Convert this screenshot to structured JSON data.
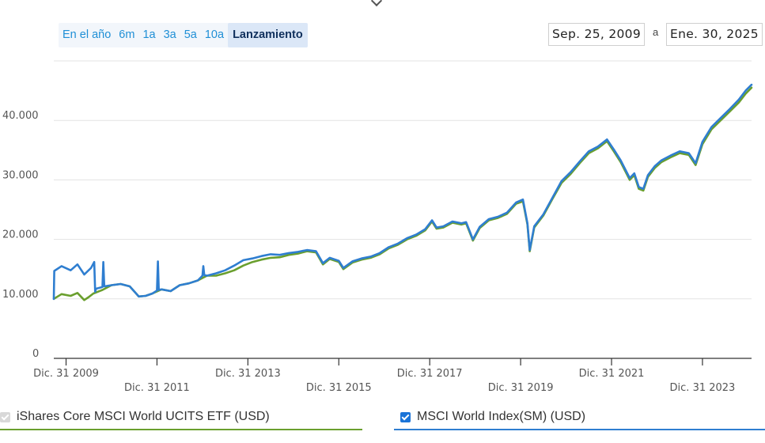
{
  "range_buttons": [
    {
      "label": "En el año",
      "active": false
    },
    {
      "label": "6m",
      "active": false
    },
    {
      "label": "1a",
      "active": false
    },
    {
      "label": "3a",
      "active": false
    },
    {
      "label": "5a",
      "active": false
    },
    {
      "label": "10a",
      "active": false
    },
    {
      "label": "Lanzamiento",
      "active": true
    }
  ],
  "date_range": {
    "from": "Sep. 25, 2009",
    "separator": "a",
    "to": "Ene. 30, 2025"
  },
  "legend": [
    {
      "label": "iShares Core MSCI World UCITS ETF (USD)",
      "checked": true,
      "disabled": true,
      "color": "#6a9f2e"
    },
    {
      "label": "MSCI World Index(SM) (USD)",
      "checked": true,
      "disabled": false,
      "color": "#2f7ed0"
    }
  ],
  "chart_data": {
    "type": "line",
    "title": "",
    "xlabel": "",
    "ylabel": "",
    "ylim": [
      0,
      50000
    ],
    "xlim": [
      2009.73,
      2025.08
    ],
    "yticks": [
      {
        "value": 0,
        "label": "0"
      },
      {
        "value": 10000,
        "label": "10.000"
      },
      {
        "value": 20000,
        "label": "20.000"
      },
      {
        "value": 30000,
        "label": "30.000"
      },
      {
        "value": 40000,
        "label": "40.000"
      }
    ],
    "xticks": [
      {
        "value": 2010.0,
        "label": "Dic. 31 2009"
      },
      {
        "value": 2012.0,
        "label": "Dic. 31 2011"
      },
      {
        "value": 2014.0,
        "label": "Dic. 31 2013"
      },
      {
        "value": 2016.0,
        "label": "Dic. 31 2015"
      },
      {
        "value": 2018.0,
        "label": "Dic. 31 2017"
      },
      {
        "value": 2020.0,
        "label": "Dic. 31 2019"
      },
      {
        "value": 2022.0,
        "label": "Dic. 31 2021"
      },
      {
        "value": 2024.0,
        "label": "Dic. 31 2023"
      }
    ],
    "grid": true,
    "legend_position": "bottom",
    "series": [
      {
        "name": "iShares Core MSCI World UCITS ETF (USD)",
        "color": "#6a9f2e",
        "x": [
          2009.73,
          2009.9,
          2010.1,
          2010.25,
          2010.4,
          2010.5,
          2010.6,
          2010.8,
          2011.0,
          2011.2,
          2011.4,
          2011.6,
          2011.75,
          2011.9,
          2012.1,
          2012.3,
          2012.5,
          2012.7,
          2012.9,
          2013.1,
          2013.3,
          2013.5,
          2013.7,
          2013.9,
          2014.1,
          2014.3,
          2014.5,
          2014.7,
          2014.9,
          2015.1,
          2015.3,
          2015.5,
          2015.65,
          2015.8,
          2016.0,
          2016.1,
          2016.3,
          2016.5,
          2016.7,
          2016.9,
          2017.1,
          2017.3,
          2017.5,
          2017.7,
          2017.9,
          2018.05,
          2018.15,
          2018.3,
          2018.5,
          2018.7,
          2018.8,
          2018.95,
          2019.1,
          2019.3,
          2019.5,
          2019.7,
          2019.9,
          2020.05,
          2020.15,
          2020.2,
          2020.3,
          2020.5,
          2020.7,
          2020.9,
          2021.1,
          2021.3,
          2021.5,
          2021.7,
          2021.9,
          2022.05,
          2022.2,
          2022.4,
          2022.5,
          2022.6,
          2022.7,
          2022.8,
          2022.95,
          2023.1,
          2023.3,
          2023.5,
          2023.7,
          2023.85,
          2024.0,
          2024.2,
          2024.4,
          2024.6,
          2024.8,
          2024.95,
          2025.08
        ],
        "y": [
          10000,
          10800,
          10500,
          11000,
          9800,
          10300,
          10900,
          11500,
          12300,
          12500,
          12100,
          10400,
          10500,
          10900,
          11600,
          11300,
          12300,
          12600,
          13100,
          13900,
          13900,
          14300,
          14800,
          15600,
          16200,
          16600,
          16900,
          17000,
          17400,
          17600,
          18000,
          17800,
          15800,
          16700,
          16200,
          15000,
          16100,
          16600,
          16900,
          17500,
          18500,
          19100,
          20000,
          20600,
          21500,
          23000,
          21800,
          22000,
          22800,
          22500,
          22700,
          19800,
          21900,
          23200,
          23600,
          24300,
          26000,
          26400,
          22500,
          18000,
          22000,
          24000,
          26800,
          29500,
          31000,
          32800,
          34500,
          35300,
          36500,
          34800,
          33000,
          30000,
          30800,
          28500,
          28200,
          30500,
          32000,
          33000,
          33800,
          34500,
          34200,
          32500,
          36000,
          38500,
          40000,
          41500,
          43000,
          44500,
          45500
        ]
      },
      {
        "name": "MSCI World Index(SM) (USD)",
        "color": "#2f7ed0",
        "x": [
          2009.73,
          2009.74,
          2009.9,
          2010.1,
          2010.25,
          2010.4,
          2010.55,
          2010.62,
          2010.64,
          2010.66,
          2010.8,
          2010.82,
          2010.84,
          2011.0,
          2011.2,
          2011.4,
          2011.6,
          2011.75,
          2011.9,
          2012.0,
          2012.02,
          2012.04,
          2012.1,
          2012.3,
          2012.5,
          2012.7,
          2012.9,
          2013.0,
          2013.02,
          2013.04,
          2013.1,
          2013.3,
          2013.5,
          2013.7,
          2013.9,
          2014.1,
          2014.3,
          2014.5,
          2014.7,
          2014.9,
          2015.1,
          2015.3,
          2015.5,
          2015.65,
          2015.8,
          2016.0,
          2016.1,
          2016.3,
          2016.5,
          2016.7,
          2016.9,
          2017.1,
          2017.3,
          2017.5,
          2017.7,
          2017.9,
          2018.05,
          2018.15,
          2018.3,
          2018.5,
          2018.7,
          2018.8,
          2018.95,
          2019.1,
          2019.3,
          2019.5,
          2019.7,
          2019.9,
          2020.05,
          2020.15,
          2020.2,
          2020.3,
          2020.5,
          2020.7,
          2020.9,
          2021.1,
          2021.3,
          2021.5,
          2021.7,
          2021.9,
          2022.05,
          2022.2,
          2022.4,
          2022.5,
          2022.6,
          2022.7,
          2022.8,
          2022.95,
          2023.1,
          2023.3,
          2023.5,
          2023.7,
          2023.85,
          2024.0,
          2024.2,
          2024.4,
          2024.6,
          2024.8,
          2024.95,
          2025.08
        ],
        "y": [
          10000,
          14700,
          15500,
          14800,
          15800,
          14100,
          15200,
          16200,
          11200,
          11700,
          12000,
          16200,
          12100,
          12300,
          12500,
          12100,
          10400,
          10500,
          10900,
          11400,
          16300,
          11500,
          11600,
          11300,
          12300,
          12600,
          13100,
          13900,
          15500,
          14000,
          13900,
          14300,
          14800,
          15600,
          16500,
          16800,
          17200,
          17500,
          17400,
          17700,
          17900,
          18200,
          18000,
          16000,
          16900,
          16400,
          15200,
          16300,
          16800,
          17100,
          17700,
          18700,
          19300,
          20200,
          20800,
          21700,
          23200,
          22000,
          22200,
          23000,
          22700,
          22900,
          20000,
          22100,
          23400,
          23800,
          24500,
          26200,
          26700,
          22700,
          18200,
          22200,
          24200,
          27000,
          29800,
          31300,
          33100,
          34800,
          35600,
          36800,
          35100,
          33300,
          30300,
          31100,
          28800,
          28500,
          30800,
          32300,
          33300,
          34100,
          34800,
          34500,
          32800,
          36400,
          38900,
          40400,
          41900,
          43500,
          45000,
          46000
        ]
      }
    ]
  }
}
